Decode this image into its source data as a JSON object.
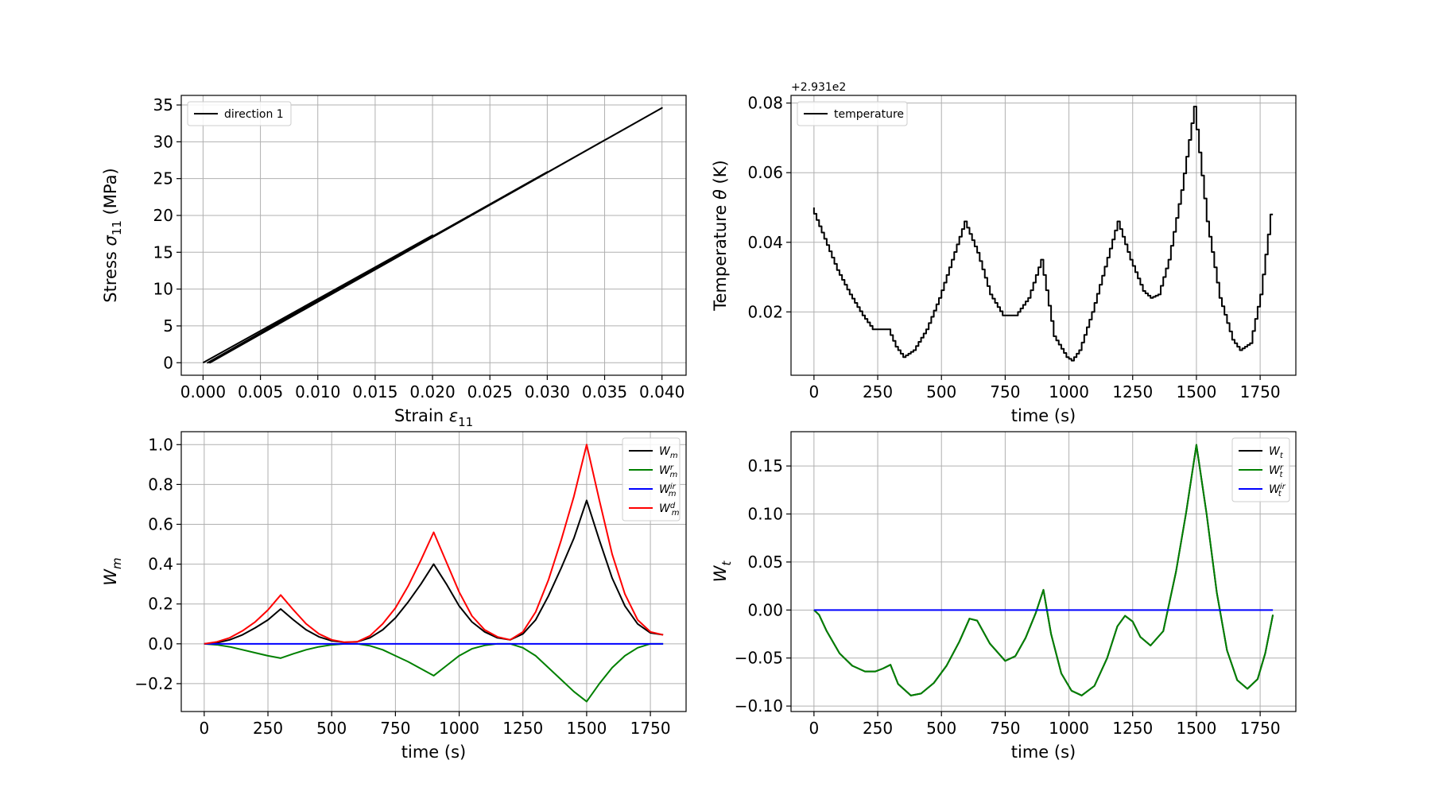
{
  "figure": {
    "background": "#ffffff"
  },
  "chart_data": [
    {
      "id": "stress_strain",
      "type": "line",
      "xlabel": "Strain",
      "xlabel_sym": "ε",
      "xlabel_sub": "11",
      "ylabel": "Stress",
      "ylabel_sym": "σ",
      "ylabel_sub": "11",
      "ylabel_unit": "(MPa)",
      "xlim": [
        -0.0019,
        0.0421
      ],
      "ylim": [
        -1.7,
        36.3
      ],
      "xticks": [
        0.0,
        0.005,
        0.01,
        0.015,
        0.02,
        0.025,
        0.03,
        0.035,
        0.04
      ],
      "xticklabels": [
        "0.000",
        "0.005",
        "0.010",
        "0.015",
        "0.020",
        "0.025",
        "0.030",
        "0.035",
        "0.040"
      ],
      "yticks": [
        0,
        5,
        10,
        15,
        20,
        25,
        30,
        35
      ],
      "yticklabels": [
        "0",
        "5",
        "10",
        "15",
        "20",
        "25",
        "30",
        "35"
      ],
      "grid": true,
      "legend_position": "upper-left",
      "series": [
        {
          "name": "direction 1",
          "color": "#000000",
          "x": [
            0.0,
            0.02,
            0.0004,
            0.03,
            0.0006,
            0.04,
            0.0005
          ],
          "y": [
            0.0,
            17.3,
            0.0,
            25.9,
            0.0,
            34.6,
            0.0
          ]
        }
      ]
    },
    {
      "id": "temperature",
      "type": "line",
      "step": true,
      "xlabel": "time (s)",
      "ylabel": "Temperature",
      "ylabel_sym": "θ",
      "ylabel_unit": "(K)",
      "offset_text": "+2.931e2",
      "xlim": [
        -90,
        1890
      ],
      "ylim": [
        0.0018,
        0.0822
      ],
      "xticks": [
        0,
        250,
        500,
        750,
        1000,
        1250,
        1500,
        1750
      ],
      "xticklabels": [
        "0",
        "250",
        "500",
        "750",
        "1000",
        "1250",
        "1500",
        "1750"
      ],
      "yticks": [
        0.02,
        0.04,
        0.06,
        0.08
      ],
      "yticklabels": [
        "0.02",
        "0.04",
        "0.06",
        "0.08"
      ],
      "grid": true,
      "legend_position": "upper-left",
      "series": [
        {
          "name": "temperature",
          "color": "#000000",
          "x": [
            0,
            50,
            100,
            150,
            200,
            240,
            300,
            330,
            360,
            400,
            450,
            500,
            550,
            600,
            650,
            700,
            750,
            800,
            850,
            900,
            950,
            1000,
            1020,
            1050,
            1100,
            1150,
            1200,
            1250,
            1300,
            1330,
            1360,
            1400,
            1450,
            1500,
            1550,
            1600,
            1650,
            1680,
            1720,
            1760,
            1800
          ],
          "y": [
            0.05,
            0.041,
            0.032,
            0.025,
            0.019,
            0.015,
            0.015,
            0.01,
            0.007,
            0.009,
            0.015,
            0.024,
            0.035,
            0.046,
            0.037,
            0.025,
            0.019,
            0.019,
            0.024,
            0.035,
            0.013,
            0.007,
            0.006,
            0.009,
            0.02,
            0.033,
            0.046,
            0.035,
            0.026,
            0.024,
            0.025,
            0.035,
            0.055,
            0.079,
            0.046,
            0.024,
            0.012,
            0.009,
            0.011,
            0.025,
            0.048
          ]
        }
      ]
    },
    {
      "id": "wm",
      "type": "line",
      "xlabel": "time (s)",
      "ylabel": "W",
      "ylabel_sub": "m",
      "xlim": [
        -90,
        1890
      ],
      "ylim": [
        -0.34,
        1.065
      ],
      "xticks": [
        0,
        250,
        500,
        750,
        1000,
        1250,
        1500,
        1750
      ],
      "xticklabels": [
        "0",
        "250",
        "500",
        "750",
        "1000",
        "1250",
        "1500",
        "1750"
      ],
      "yticks": [
        -0.2,
        0.0,
        0.2,
        0.4,
        0.6,
        0.8,
        1.0
      ],
      "yticklabels": [
        "−0.2",
        "0.0",
        "0.2",
        "0.4",
        "0.6",
        "0.8",
        "1.0"
      ],
      "grid": true,
      "legend_position": "upper-right",
      "series": [
        {
          "name": "W_m",
          "label_base": "W",
          "label_sub": "m",
          "label_sup": "",
          "color": "#000000",
          "x": [
            0,
            50,
            100,
            150,
            200,
            250,
            300,
            350,
            400,
            450,
            500,
            550,
            600,
            650,
            700,
            750,
            800,
            850,
            900,
            950,
            1000,
            1050,
            1100,
            1150,
            1200,
            1250,
            1300,
            1350,
            1400,
            1450,
            1500,
            1550,
            1600,
            1650,
            1700,
            1750,
            1800
          ],
          "y": [
            0.0,
            0.005,
            0.02,
            0.045,
            0.08,
            0.12,
            0.175,
            0.12,
            0.07,
            0.035,
            0.015,
            0.007,
            0.01,
            0.03,
            0.07,
            0.13,
            0.21,
            0.3,
            0.4,
            0.3,
            0.19,
            0.11,
            0.06,
            0.03,
            0.02,
            0.05,
            0.12,
            0.24,
            0.38,
            0.53,
            0.72,
            0.52,
            0.33,
            0.19,
            0.1,
            0.055,
            0.045
          ]
        },
        {
          "name": "W_m^r",
          "label_base": "W",
          "label_sub": "m",
          "label_sup": "r",
          "color": "#008000",
          "x": [
            0,
            50,
            100,
            150,
            200,
            250,
            300,
            350,
            400,
            450,
            500,
            550,
            600,
            650,
            700,
            750,
            800,
            850,
            900,
            950,
            1000,
            1050,
            1100,
            1150,
            1200,
            1250,
            1300,
            1350,
            1400,
            1450,
            1500,
            1550,
            1600,
            1650,
            1700,
            1750,
            1800
          ],
          "y": [
            0.0,
            -0.005,
            -0.015,
            -0.03,
            -0.045,
            -0.06,
            -0.072,
            -0.05,
            -0.03,
            -0.015,
            -0.005,
            0.0,
            0.0,
            -0.01,
            -0.03,
            -0.06,
            -0.09,
            -0.125,
            -0.16,
            -0.11,
            -0.06,
            -0.025,
            -0.008,
            0.0,
            0.0,
            -0.02,
            -0.06,
            -0.12,
            -0.18,
            -0.24,
            -0.29,
            -0.2,
            -0.12,
            -0.06,
            -0.02,
            0.0,
            0.0
          ]
        },
        {
          "name": "W_m^ir",
          "label_base": "W",
          "label_sub": "m",
          "label_sup": "ir",
          "color": "#0000ff",
          "x": [
            0,
            1800
          ],
          "y": [
            0.0,
            0.0
          ]
        },
        {
          "name": "W_m^d",
          "label_base": "W",
          "label_sub": "m",
          "label_sup": "d",
          "color": "#ff0000",
          "x": [
            0,
            50,
            100,
            150,
            200,
            250,
            300,
            350,
            400,
            450,
            500,
            550,
            600,
            650,
            700,
            750,
            800,
            850,
            900,
            950,
            1000,
            1050,
            1100,
            1150,
            1200,
            1250,
            1300,
            1350,
            1400,
            1450,
            1500,
            1550,
            1600,
            1650,
            1700,
            1750,
            1800
          ],
          "y": [
            0.0,
            0.01,
            0.03,
            0.065,
            0.11,
            0.17,
            0.245,
            0.17,
            0.1,
            0.05,
            0.02,
            0.008,
            0.01,
            0.04,
            0.1,
            0.18,
            0.29,
            0.42,
            0.56,
            0.41,
            0.26,
            0.14,
            0.07,
            0.035,
            0.02,
            0.06,
            0.16,
            0.32,
            0.52,
            0.74,
            1.0,
            0.72,
            0.45,
            0.25,
            0.12,
            0.06,
            0.045
          ]
        }
      ]
    },
    {
      "id": "wt",
      "type": "line",
      "xlabel": "time (s)",
      "ylabel": "W",
      "ylabel_sub": "t",
      "xlim": [
        -90,
        1890
      ],
      "ylim": [
        -0.1057,
        0.1857
      ],
      "xticks": [
        0,
        250,
        500,
        750,
        1000,
        1250,
        1500,
        1750
      ],
      "xticklabels": [
        "0",
        "250",
        "500",
        "750",
        "1000",
        "1250",
        "1500",
        "1750"
      ],
      "yticks": [
        -0.1,
        -0.05,
        0.0,
        0.05,
        0.1,
        0.15
      ],
      "yticklabels": [
        "−0.10",
        "−0.05",
        "0.00",
        "0.05",
        "0.10",
        "0.15"
      ],
      "grid": true,
      "legend_position": "upper-right",
      "series": [
        {
          "name": "W_t",
          "label_base": "W",
          "label_sub": "t",
          "label_sup": "",
          "color": "#000000",
          "x": [
            0,
            20,
            50,
            100,
            150,
            200,
            240,
            270,
            300,
            330,
            380,
            420,
            470,
            520,
            570,
            610,
            640,
            690,
            750,
            790,
            830,
            870,
            900,
            930,
            970,
            1010,
            1050,
            1100,
            1150,
            1190,
            1220,
            1250,
            1280,
            1320,
            1370,
            1420,
            1460,
            1500,
            1540,
            1580,
            1620,
            1660,
            1700,
            1740,
            1770,
            1800
          ],
          "y": [
            0.0,
            -0.005,
            -0.022,
            -0.045,
            -0.058,
            -0.064,
            -0.064,
            -0.061,
            -0.057,
            -0.077,
            -0.089,
            -0.087,
            -0.076,
            -0.058,
            -0.033,
            -0.009,
            -0.011,
            -0.035,
            -0.053,
            -0.048,
            -0.029,
            -0.003,
            0.021,
            -0.025,
            -0.066,
            -0.084,
            -0.089,
            -0.079,
            -0.05,
            -0.017,
            -0.006,
            -0.012,
            -0.028,
            -0.037,
            -0.022,
            0.04,
            0.102,
            0.172,
            0.1,
            0.018,
            -0.042,
            -0.073,
            -0.082,
            -0.072,
            -0.045,
            -0.005
          ]
        },
        {
          "name": "W_t^r",
          "label_base": "W",
          "label_sub": "t",
          "label_sup": "r",
          "color": "#008000",
          "x": [
            0,
            20,
            50,
            100,
            150,
            200,
            240,
            270,
            300,
            330,
            380,
            420,
            470,
            520,
            570,
            610,
            640,
            690,
            750,
            790,
            830,
            870,
            900,
            930,
            970,
            1010,
            1050,
            1100,
            1150,
            1190,
            1220,
            1250,
            1280,
            1320,
            1370,
            1420,
            1460,
            1500,
            1540,
            1580,
            1620,
            1660,
            1700,
            1740,
            1770,
            1800
          ],
          "y": [
            0.0,
            -0.005,
            -0.022,
            -0.045,
            -0.058,
            -0.064,
            -0.064,
            -0.061,
            -0.057,
            -0.077,
            -0.089,
            -0.087,
            -0.076,
            -0.058,
            -0.033,
            -0.009,
            -0.011,
            -0.035,
            -0.053,
            -0.048,
            -0.029,
            -0.003,
            0.021,
            -0.025,
            -0.066,
            -0.084,
            -0.089,
            -0.079,
            -0.05,
            -0.017,
            -0.006,
            -0.012,
            -0.028,
            -0.037,
            -0.022,
            0.04,
            0.102,
            0.172,
            0.1,
            0.018,
            -0.042,
            -0.073,
            -0.082,
            -0.072,
            -0.045,
            -0.005
          ]
        },
        {
          "name": "W_t^ir",
          "label_base": "W",
          "label_sub": "t",
          "label_sup": "ir",
          "color": "#0000ff",
          "x": [
            0,
            1800
          ],
          "y": [
            0.0,
            0.0
          ]
        }
      ]
    }
  ]
}
